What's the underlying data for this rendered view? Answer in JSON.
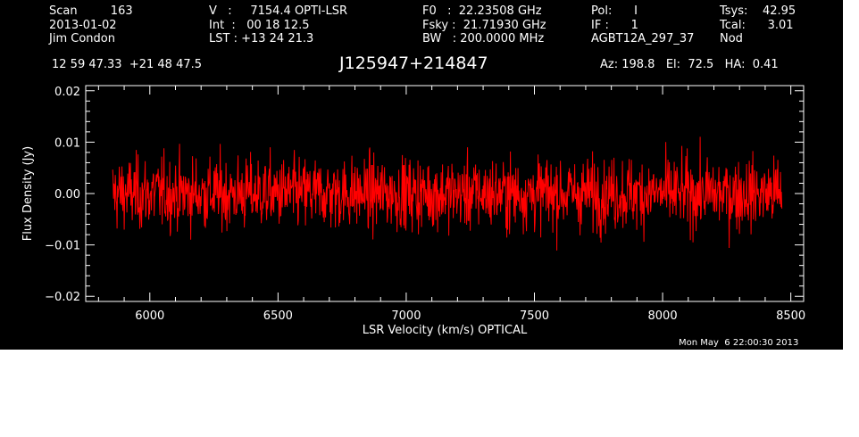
{
  "header": {
    "col1": [
      "Scan         163",
      "2013-01-02",
      "Jim Condon"
    ],
    "col2": [
      "V   :     7154.4 OPTI-LSR",
      "Int  :   00 18 12.5",
      "LST : +13 24 21.3"
    ],
    "col3": [
      "F0   :  22.23508 GHz",
      "Fsky :  21.71930 GHz",
      "BW   : 200.0000 MHz"
    ],
    "col4": [
      "Pol:      I",
      "IF :      1",
      "AGBT12A_297_37"
    ],
    "col5": [
      "Tsys:    42.95",
      "Tcal:      3.01",
      "Nod"
    ],
    "coords": "12 59 47.33  +21 48 47.5",
    "source": "J125947+214847",
    "pointing": "Az: 198.8   El:  72.5   HA:  0.41"
  },
  "footer": {
    "timestamp": "Mon May  6 22:00:30 2013"
  },
  "colors": {
    "background": "#000000",
    "axes": "#ffffff",
    "trace": "#ff0000"
  },
  "chart_data": {
    "type": "line",
    "xlabel": "LSR Velocity (km/s) OPTICAL",
    "ylabel": "Flux Density (Jy)",
    "xlim": [
      5750,
      8550
    ],
    "ylim": [
      -0.021,
      0.021
    ],
    "xticks": [
      6000,
      6500,
      7000,
      7500,
      8000,
      8500
    ],
    "xtick_labels": [
      "6000",
      "6500",
      "7000",
      "7500",
      "8000",
      "8500"
    ],
    "yticks": [
      -0.02,
      -0.01,
      0.0,
      0.01,
      0.02
    ],
    "ytick_labels": [
      "−0.02",
      "−0.01",
      "0.00",
      "0.01",
      "0.02"
    ],
    "series": [
      {
        "color": "#ff0000",
        "x_range": [
          5855,
          8465
        ],
        "y_min": -0.0138,
        "y_max": 0.0155,
        "mean": 0.0,
        "rms": 0.0035,
        "points": 1500
      }
    ]
  }
}
